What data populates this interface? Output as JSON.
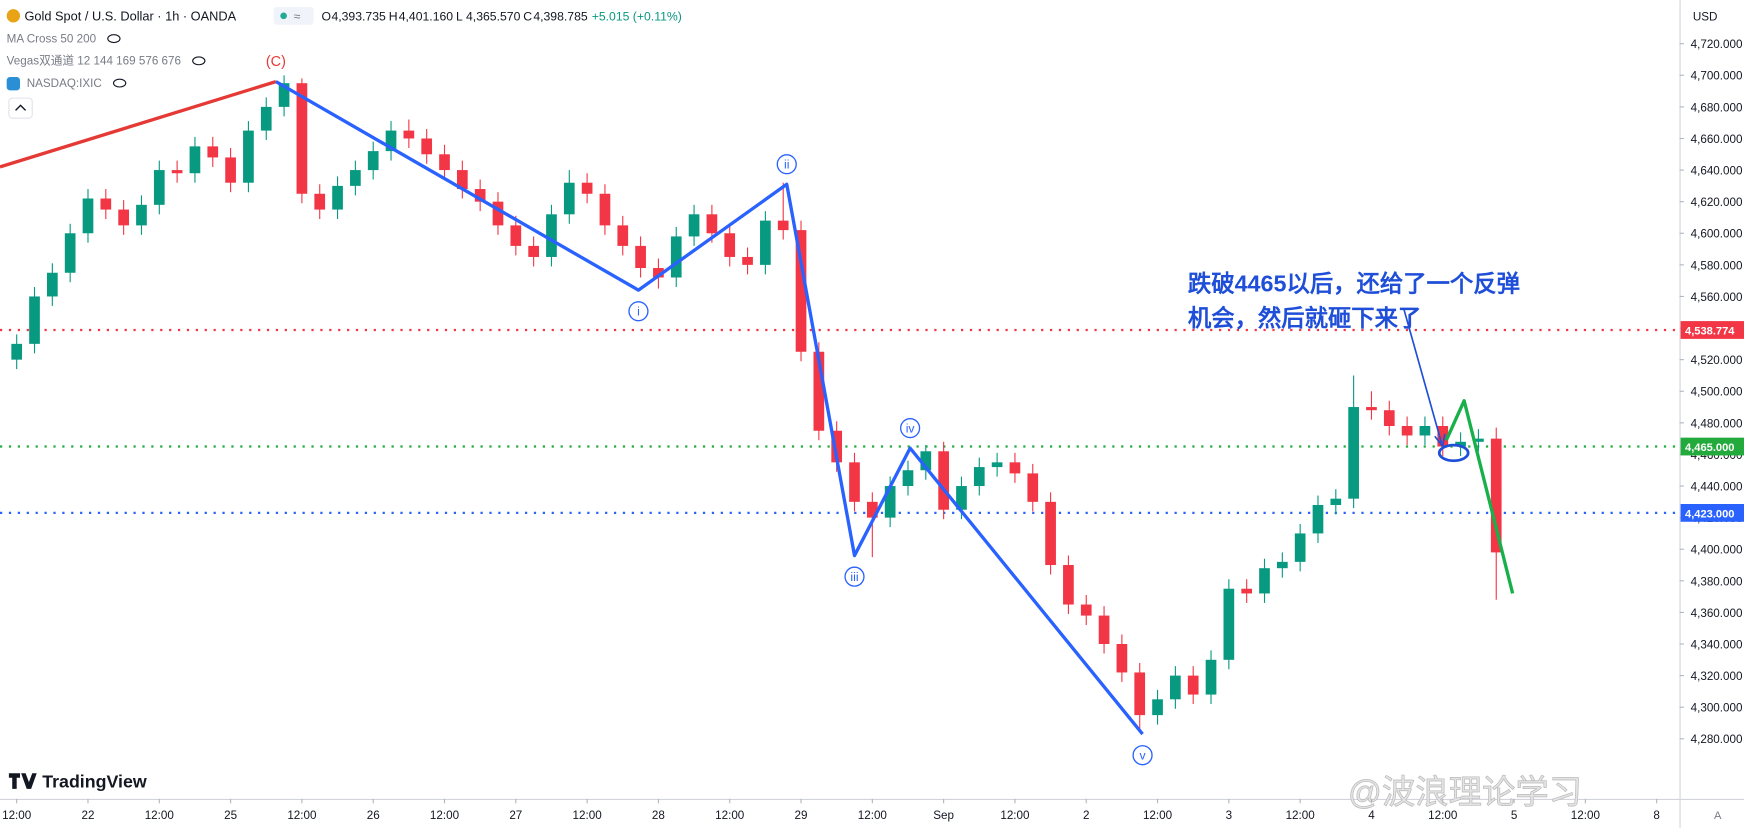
{
  "header": {
    "symbol": "Gold Spot / U.S. Dollar · 1h · OANDA",
    "ohlc": [
      {
        "key": "O",
        "value": "4,393.735"
      },
      {
        "key": "H",
        "value": "4,401.160"
      },
      {
        "key": "L",
        "value": "4,365.570"
      },
      {
        "key": "C",
        "value": "4,398.785"
      }
    ],
    "change": "+5.015 (+0.11%)"
  },
  "indicators": [
    "MA Cross 50 200",
    "Vegas双通道 12 144 169 576 676",
    "NASDAQ:IXIC"
  ],
  "brand": "TradingView",
  "watermark": "@波浪理论学习",
  "chart_data": {
    "type": "candlestick",
    "currency": "USD",
    "up_color": "#089981",
    "down_color": "#f23645",
    "grid": false,
    "xlim": [
      -0.234,
      23.32
    ],
    "xticks": [
      {
        "value": 0,
        "label": "12:00"
      },
      {
        "value": 1,
        "label": "22"
      },
      {
        "value": 2,
        "label": "12:00"
      },
      {
        "value": 3,
        "label": "25"
      },
      {
        "value": 4,
        "label": "12:00"
      },
      {
        "value": 5,
        "label": "26"
      },
      {
        "value": 6,
        "label": "12:00"
      },
      {
        "value": 7,
        "label": "27"
      },
      {
        "value": 8,
        "label": "12:00"
      },
      {
        "value": 9,
        "label": "28"
      },
      {
        "value": 10,
        "label": "12:00"
      },
      {
        "value": 11,
        "label": "29"
      },
      {
        "value": 12,
        "label": "12:00"
      },
      {
        "value": 13,
        "label": "Sep"
      },
      {
        "value": 14,
        "label": "12:00"
      },
      {
        "value": 15,
        "label": "2"
      },
      {
        "value": 16,
        "label": "12:00"
      },
      {
        "value": 17,
        "label": "3"
      },
      {
        "value": 18,
        "label": "12:00"
      },
      {
        "value": 19,
        "label": "4"
      },
      {
        "value": 20,
        "label": "12:00"
      },
      {
        "value": 21,
        "label": "5"
      },
      {
        "value": 22,
        "label": "12:00"
      },
      {
        "value": 23,
        "label": "8"
      }
    ],
    "ylim": [
      4242,
      4747.5
    ],
    "yticks": [
      {
        "value": 4280,
        "label": "4,280.000"
      },
      {
        "value": 4300,
        "label": "4,300.000"
      },
      {
        "value": 4320,
        "label": "4,320.000"
      },
      {
        "value": 4340,
        "label": "4,340.000"
      },
      {
        "value": 4360,
        "label": "4,360.000"
      },
      {
        "value": 4380,
        "label": "4,380.000"
      },
      {
        "value": 4400,
        "label": "4,400.000"
      },
      {
        "value": 4420,
        "label": "4,420.000"
      },
      {
        "value": 4440,
        "label": "4,440.000"
      },
      {
        "value": 4460,
        "label": "4,460.000"
      },
      {
        "value": 4480,
        "label": "4,480.000"
      },
      {
        "value": 4500,
        "label": "4,500.000"
      },
      {
        "value": 4520,
        "label": "4,520.000"
      },
      {
        "value": 4540,
        "label": "4,540.000"
      },
      {
        "value": 4560,
        "label": "4,560.000"
      },
      {
        "value": 4580,
        "label": "4,580.000"
      },
      {
        "value": 4600,
        "label": "4,600.000"
      },
      {
        "value": 4620,
        "label": "4,620.000"
      },
      {
        "value": 4640,
        "label": "4,640.000"
      },
      {
        "value": 4660,
        "label": "4,660.000"
      },
      {
        "value": 4680,
        "label": "4,680.000"
      },
      {
        "value": 4700,
        "label": "4,700.000"
      },
      {
        "value": 4720,
        "label": "4,720.000"
      }
    ],
    "candles": {
      "x": [
        0,
        0.25,
        0.5,
        0.75,
        1,
        1.25,
        1.5,
        1.75,
        2,
        2.25,
        2.5,
        2.75,
        3,
        3.25,
        3.5,
        3.75,
        4,
        4.25,
        4.5,
        4.75,
        5,
        5.25,
        5.5,
        5.75,
        6,
        6.25,
        6.5,
        6.75,
        7,
        7.25,
        7.5,
        7.75,
        8,
        8.25,
        8.5,
        8.75,
        9,
        9.25,
        9.5,
        9.75,
        10,
        10.25,
        10.5,
        10.75,
        11,
        11.25,
        11.5,
        11.75,
        12,
        12.25,
        12.5,
        12.75,
        13,
        13.25,
        13.5,
        13.75,
        14,
        14.25,
        14.5,
        14.75,
        15,
        15.25,
        15.5,
        15.75,
        16,
        16.25,
        16.5,
        16.75,
        17,
        17.25,
        17.5,
        17.75,
        18,
        18.25,
        18.5,
        18.75,
        19,
        19.25,
        19.5,
        19.75,
        20,
        20.25,
        20.5,
        20.75
      ],
      "open": [
        4520,
        4530,
        4560,
        4575,
        4600,
        4622,
        4615,
        4605,
        4618,
        4640,
        4638,
        4655,
        4648,
        4632,
        4665,
        4680,
        4695,
        4625,
        4615,
        4630,
        4640,
        4652,
        4665,
        4660,
        4650,
        4640,
        4628,
        4620,
        4605,
        4592,
        4585,
        4612,
        4632,
        4625,
        4605,
        4592,
        4578,
        4572,
        4598,
        4612,
        4600,
        4585,
        4580,
        4608,
        4602,
        4525,
        4475,
        4455,
        4430,
        4420,
        4440,
        4450,
        4462,
        4425,
        4440,
        4452,
        4455,
        4448,
        4430,
        4390,
        4365,
        4358,
        4340,
        4322,
        4295,
        4305,
        4320,
        4308,
        4330,
        4375,
        4372,
        4388,
        4392,
        4410,
        4428,
        4432,
        4490,
        4488,
        4478,
        4472,
        4478,
        4465,
        4468,
        4470
      ],
      "high": [
        4536,
        4566,
        4581,
        4606,
        4628,
        4628,
        4621,
        4624,
        4646,
        4646,
        4661,
        4661,
        4654,
        4671,
        4686,
        4700,
        4698,
        4631,
        4636,
        4646,
        4658,
        4671,
        4672,
        4666,
        4656,
        4646,
        4634,
        4626,
        4611,
        4598,
        4618,
        4640,
        4638,
        4631,
        4611,
        4598,
        4584,
        4604,
        4618,
        4618,
        4606,
        4591,
        4614,
        4632,
        4608,
        4531,
        4481,
        4461,
        4436,
        4446,
        4456,
        4466,
        4468,
        4446,
        4458,
        4461,
        4461,
        4454,
        4436,
        4396,
        4371,
        4364,
        4346,
        4328,
        4311,
        4326,
        4326,
        4336,
        4381,
        4381,
        4394,
        4398,
        4416,
        4434,
        4438,
        4510,
        4500,
        4494,
        4484,
        4484,
        4484,
        4474,
        4476,
        4477
      ],
      "low": [
        4514,
        4524,
        4554,
        4569,
        4594,
        4609,
        4599,
        4599,
        4612,
        4632,
        4632,
        4642,
        4626,
        4626,
        4659,
        4674,
        4619,
        4609,
        4609,
        4624,
        4634,
        4646,
        4654,
        4644,
        4634,
        4622,
        4614,
        4599,
        4586,
        4579,
        4579,
        4606,
        4619,
        4599,
        4586,
        4572,
        4565,
        4566,
        4592,
        4594,
        4579,
        4574,
        4574,
        4596,
        4519,
        4469,
        4449,
        4424,
        4395,
        4414,
        4434,
        4444,
        4419,
        4419,
        4434,
        4446,
        4442,
        4424,
        4384,
        4359,
        4352,
        4334,
        4316,
        4285,
        4289,
        4299,
        4302,
        4302,
        4324,
        4366,
        4366,
        4382,
        4386,
        4404,
        4422,
        4426,
        4482,
        4472,
        4466,
        4466,
        4459,
        4459,
        4462,
        4368
      ],
      "close": [
        4530,
        4560,
        4575,
        4600,
        4622,
        4615,
        4605,
        4618,
        4640,
        4638,
        4655,
        4648,
        4632,
        4665,
        4680,
        4695,
        4625,
        4615,
        4630,
        4640,
        4652,
        4665,
        4660,
        4650,
        4640,
        4628,
        4620,
        4605,
        4592,
        4585,
        4612,
        4632,
        4625,
        4605,
        4592,
        4578,
        4572,
        4598,
        4612,
        4600,
        4585,
        4580,
        4608,
        4602,
        4525,
        4475,
        4455,
        4430,
        4420,
        4440,
        4450,
        4462,
        4425,
        4440,
        4452,
        4455,
        4448,
        4430,
        4390,
        4365,
        4358,
        4340,
        4322,
        4295,
        4305,
        4320,
        4308,
        4330,
        4375,
        4372,
        4388,
        4392,
        4410,
        4428,
        4432,
        4490,
        4488,
        4478,
        4472,
        4478,
        4465,
        4468,
        4470,
        4398
      ]
    },
    "levels": [
      {
        "value": 4538.774,
        "label": "4,538.774",
        "color": "#f23645"
      },
      {
        "value": 4465,
        "label": "4,465.000",
        "color": "#22ab3c"
      },
      {
        "value": 4423,
        "label": "4,423.000",
        "color": "#2962ff"
      }
    ],
    "waves": [
      {
        "color": "#e53935",
        "x": [
          -0.234,
          3.635
        ],
        "y": [
          4642,
          4696
        ],
        "labels": [
          null,
          "(C)"
        ],
        "circled": false
      },
      {
        "color": "#2962ff",
        "x": [
          3.635,
          8.72,
          10.8,
          11.75,
          12.53,
          15.79
        ],
        "y": [
          4696,
          4564,
          4631,
          4396,
          4464,
          4283
        ],
        "labels": [
          null,
          "i",
          "ii",
          "iii",
          "iv",
          "v"
        ],
        "circled": true
      },
      {
        "color": "#18b04a",
        "x": [
          20.05,
          20.3,
          20.98
        ],
        "y": [
          4469,
          4494,
          4372
        ],
        "labels": [
          null,
          null,
          null
        ],
        "circled": false
      }
    ],
    "annotation": [
      "跌破4465以后，还给了一个反弹",
      "机会，然后就砸下来了"
    ]
  }
}
